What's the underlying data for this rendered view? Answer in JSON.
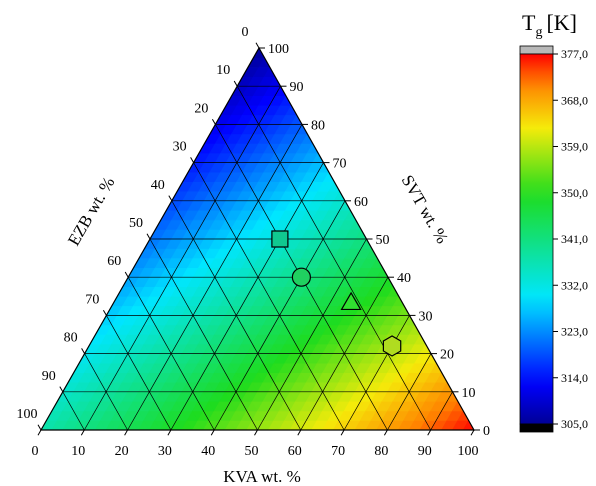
{
  "chart_data": {
    "type": "ternary-contour",
    "axes": {
      "bottom": {
        "label": "KVA wt. %",
        "ticks": [
          "0",
          "10",
          "20",
          "30",
          "40",
          "50",
          "60",
          "70",
          "80",
          "90",
          "100"
        ]
      },
      "left": {
        "label": "EZB wt. %",
        "ticks": [
          "0",
          "10",
          "20",
          "30",
          "40",
          "50",
          "60",
          "70",
          "80",
          "90",
          "100"
        ]
      },
      "right": {
        "label": "SVT wt. %",
        "ticks": [
          "0",
          "10",
          "20",
          "30",
          "40",
          "50",
          "60",
          "70",
          "80",
          "90",
          "100"
        ]
      }
    },
    "grid": true,
    "grid_step": 10,
    "colorbar": {
      "title_main": "T",
      "title_sub": "g",
      "title_unit": "[K]",
      "min": 305.0,
      "max": 377.0,
      "ticks": [
        "305,0",
        "314,0",
        "323,0",
        "332,0",
        "341,0",
        "350,0",
        "359,0",
        "368,0",
        "377,0"
      ],
      "tick_values": [
        305,
        314,
        323,
        332,
        341,
        350,
        359,
        368,
        377
      ],
      "over_color": "#b8b8b8",
      "under_color": "#000000",
      "placement": "right"
    },
    "surface": {
      "description_values": "Tg at vertices (K)",
      "vertex_svt_100": 305,
      "vertex_ezb_100": 337,
      "vertex_kva_100": 377
    },
    "markers": [
      {
        "shape": "square",
        "kva": 30,
        "svt": 50,
        "ezb": 20,
        "fill": "#10c890"
      },
      {
        "shape": "circle",
        "kva": 40,
        "svt": 40,
        "ezb": 20,
        "fill": "#20d060"
      },
      {
        "shape": "triangle",
        "kva": 55,
        "svt": 33,
        "ezb": 12,
        "fill": "#30e030"
      },
      {
        "shape": "hexagon",
        "kva": 70,
        "svt": 22,
        "ezb": 8,
        "fill": "#b0dc20"
      }
    ]
  }
}
